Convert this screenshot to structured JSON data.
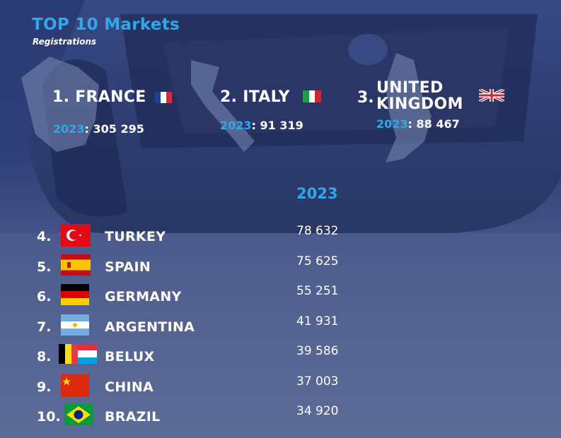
{
  "header": {
    "title": "TOP 10 Markets",
    "subtitle": "Registrations"
  },
  "podium": [
    {
      "rank_name": "1. FRANCE",
      "year": "2023",
      "value": "305 295",
      "flag": "france-flag"
    },
    {
      "rank_name": "2. ITALY",
      "year": "2023",
      "value": "91 319",
      "flag": "italy-flag"
    },
    {
      "rank_name_line1": "UNITED",
      "rank_name_line2": "KINGDOM",
      "rank_prefix": "3.",
      "year": "2023",
      "value": "88 467",
      "flag": "uk-flag"
    }
  ],
  "table": {
    "year_header": "2023",
    "rows": [
      {
        "rank": "4.",
        "country": "TURKEY",
        "value": "78 632",
        "flag": "turkey-flag"
      },
      {
        "rank": "5.",
        "country": "SPAIN",
        "value": "75 625",
        "flag": "spain-flag"
      },
      {
        "rank": "6.",
        "country": "GERMANY",
        "value": "55 251",
        "flag": "germany-flag"
      },
      {
        "rank": "7.",
        "country": "ARGENTINA",
        "value": "41 931",
        "flag": "argentina-flag"
      },
      {
        "rank": "8.",
        "country": "BELUX",
        "value": "39 586",
        "flag": "belux-flag"
      },
      {
        "rank": "9.",
        "country": "CHINA",
        "value": "37 003",
        "flag": "china-flag"
      },
      {
        "rank": "10.",
        "country": "BRAZIL",
        "value": "34 920",
        "flag": "brazil-flag"
      }
    ]
  },
  "colors": {
    "accent": "#2fa8ea",
    "background": "#2f3f78",
    "text": "#ffffff"
  }
}
